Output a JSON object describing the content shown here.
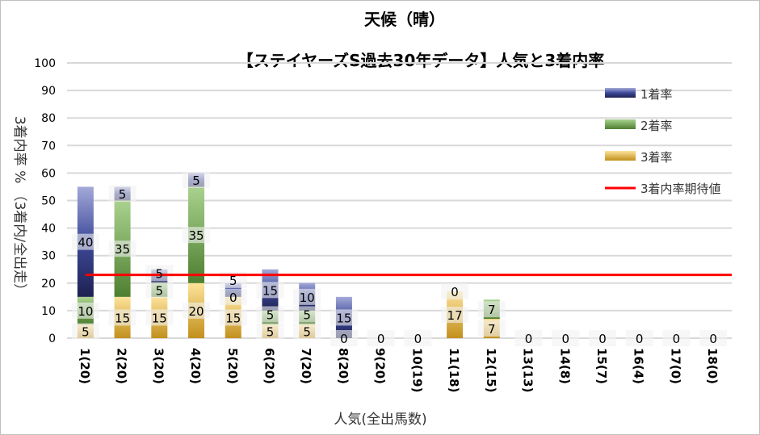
{
  "chart_data": {
    "type": "bar",
    "stacked": true,
    "title": "天候（晴）",
    "subtitle": "【ステイヤーズS過去30年データ】人気と3着内率",
    "xlabel": "人気(全出馬数)",
    "ylabel": "3着内率 % （3着内/全出走）",
    "ylim": [
      0,
      100
    ],
    "yticks": [
      "0",
      "10",
      "20",
      "30",
      "40",
      "50",
      "60",
      "70",
      "80",
      "90",
      "100"
    ],
    "categories": [
      "1(20)",
      "2(20)",
      "3(20)",
      "4(20)",
      "5(20)",
      "6(20)",
      "7(20)",
      "8(20)",
      "9(20)",
      "10(19)",
      "11(18)",
      "12(15)",
      "13(13)",
      "14(8)",
      "15(7)",
      "16(4)",
      "17(0)",
      "18(0)"
    ],
    "series": [
      {
        "name": "3着率",
        "color": "#d4a53a",
        "values": [
          5,
          15,
          15,
          20,
          15,
          5,
          5,
          0,
          0,
          0,
          17,
          7,
          0,
          0,
          0,
          0,
          0,
          0
        ]
      },
      {
        "name": "2着率",
        "color": "#70a94c",
        "values": [
          10,
          35,
          5,
          35,
          0,
          5,
          5,
          0,
          0,
          0,
          0,
          7,
          0,
          0,
          0,
          0,
          0,
          0
        ]
      },
      {
        "name": "1着率",
        "color": "#4a54a0",
        "values": [
          40,
          5,
          5,
          5,
          5,
          15,
          10,
          15,
          0,
          0,
          0,
          0,
          0,
          0,
          0,
          0,
          0,
          0
        ]
      }
    ],
    "legend": [
      "1着率",
      "2着率",
      "3着率",
      "3着内率期待値"
    ],
    "legend_position": "right",
    "expected_line": {
      "name": "3着内率期待値",
      "value": 23,
      "color": "#ff0000"
    },
    "grid": true
  }
}
